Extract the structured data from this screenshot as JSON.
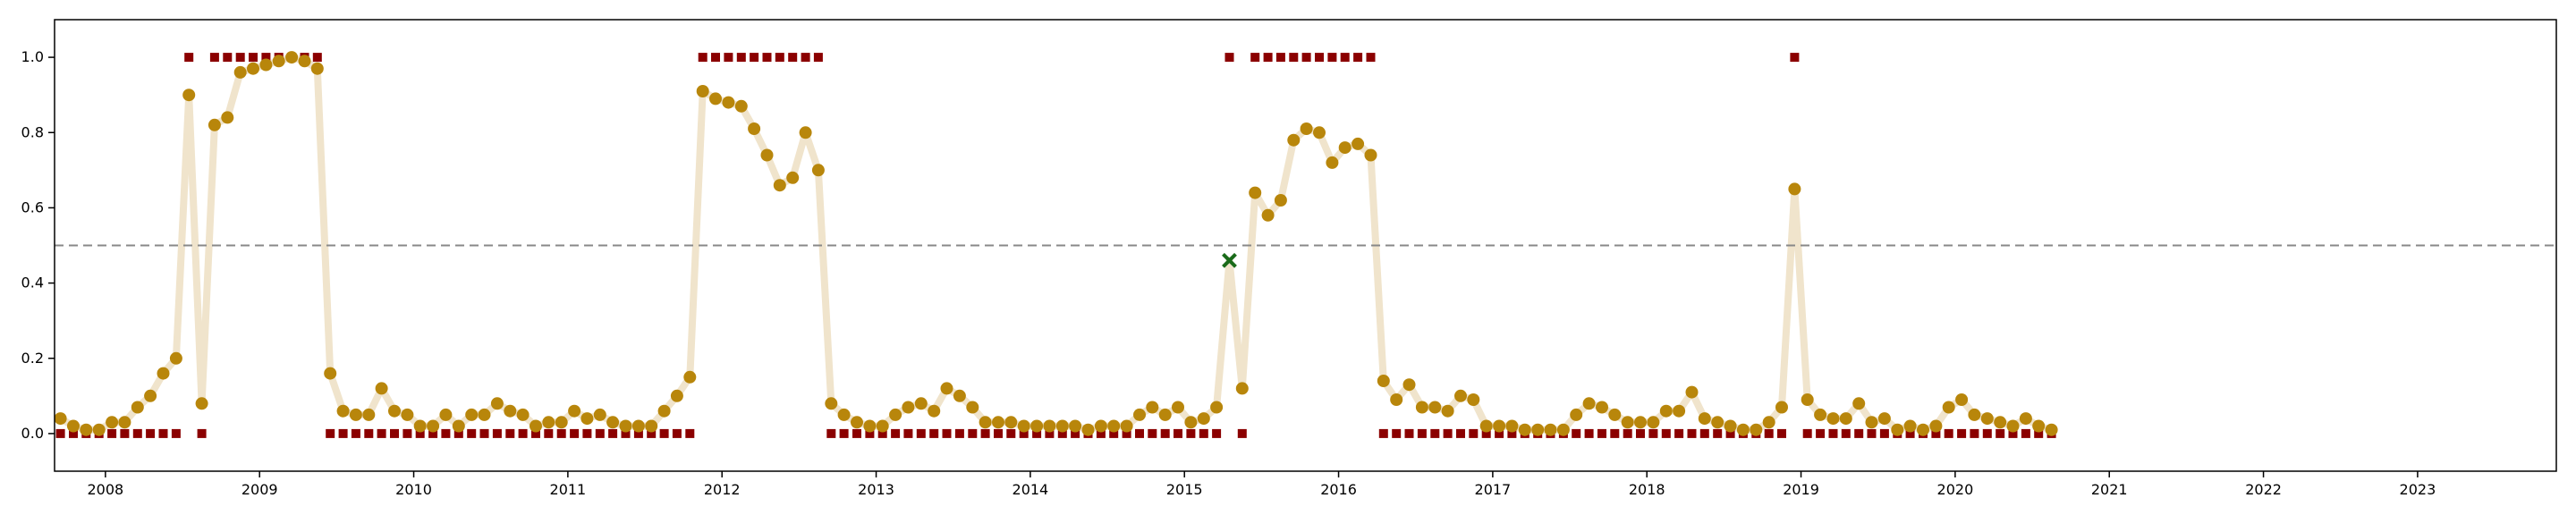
{
  "chart_data": {
    "type": "line",
    "title": "",
    "xlabel": "",
    "ylabel": "",
    "xlim": [
      2007.67,
      2023.9
    ],
    "ylim": [
      -0.1,
      1.1
    ],
    "x_ticks": [
      2008,
      2009,
      2010,
      2011,
      2012,
      2013,
      2014,
      2015,
      2016,
      2017,
      2018,
      2019,
      2020,
      2021,
      2022,
      2023
    ],
    "x_tick_labels": [
      "2008",
      "2009",
      "2010",
      "2011",
      "2012",
      "2013",
      "2014",
      "2015",
      "2016",
      "2017",
      "2018",
      "2019",
      "2020",
      "2021",
      "2022",
      "2023"
    ],
    "y_ticks": [
      0.0,
      0.2,
      0.4,
      0.6,
      0.8,
      1.0
    ],
    "y_tick_labels": [
      "0.0",
      "0.2",
      "0.4",
      "0.6",
      "0.8",
      "1.0"
    ],
    "threshold": 0.5,
    "grid": false,
    "colors": {
      "line": "#f0e4cc",
      "points": "#b8860b",
      "labels": "#8b0000",
      "threshold": "#888888",
      "marker_x": "#1a6b1a"
    },
    "series": [
      {
        "x": [
          "2007-09",
          "2007-10",
          "2007-11",
          "2007-12",
          "2008-01",
          "2008-02",
          "2008-03",
          "2008-04",
          "2008-05",
          "2008-06",
          "2008-07",
          "2008-08",
          "2008-09",
          "2008-10",
          "2008-11",
          "2008-12",
          "2009-01",
          "2009-02",
          "2009-03",
          "2009-04",
          "2009-05",
          "2009-06",
          "2009-07",
          "2009-08",
          "2009-09",
          "2009-10",
          "2009-11",
          "2009-12",
          "2010-01",
          "2010-02",
          "2010-03",
          "2010-04",
          "2010-05",
          "2010-06",
          "2010-07",
          "2010-08",
          "2010-09",
          "2010-10",
          "2010-11",
          "2010-12",
          "2011-01",
          "2011-02",
          "2011-03",
          "2011-04",
          "2011-05",
          "2011-06",
          "2011-07",
          "2011-08",
          "2011-09",
          "2011-10",
          "2011-11",
          "2011-12",
          "2012-01",
          "2012-02",
          "2012-03",
          "2012-04",
          "2012-05",
          "2012-06",
          "2012-07",
          "2012-08",
          "2012-09",
          "2012-10",
          "2012-11",
          "2012-12",
          "2013-01",
          "2013-02",
          "2013-03",
          "2013-04",
          "2013-05",
          "2013-06",
          "2013-07",
          "2013-08",
          "2013-09",
          "2013-10",
          "2013-11",
          "2013-12",
          "2014-01",
          "2014-02",
          "2014-03",
          "2014-04",
          "2014-05",
          "2014-06",
          "2014-07",
          "2014-08",
          "2014-09",
          "2014-10",
          "2014-11",
          "2014-12",
          "2015-01",
          "2015-02",
          "2015-03",
          "2015-04",
          "2015-05",
          "2015-06",
          "2015-07",
          "2015-08",
          "2015-09",
          "2015-10",
          "2015-11",
          "2015-12",
          "2016-01",
          "2016-02",
          "2016-03",
          "2016-04",
          "2016-05",
          "2016-06",
          "2016-07",
          "2016-08",
          "2016-09",
          "2016-10",
          "2016-11",
          "2016-12",
          "2017-01",
          "2017-02",
          "2017-03",
          "2017-04",
          "2017-05",
          "2017-06",
          "2017-07",
          "2017-08",
          "2017-09",
          "2017-10",
          "2017-11",
          "2017-12",
          "2018-01",
          "2018-02",
          "2018-03",
          "2018-04",
          "2018-05",
          "2018-06",
          "2018-07",
          "2018-08",
          "2018-09",
          "2018-10",
          "2018-11",
          "2018-12",
          "2019-01",
          "2019-02",
          "2019-03",
          "2019-04",
          "2019-05",
          "2019-06",
          "2019-07",
          "2019-08",
          "2019-09",
          "2019-10",
          "2019-11",
          "2019-12",
          "2020-01",
          "2020-02",
          "2020-03",
          "2020-04",
          "2020-05",
          "2020-06",
          "2020-07",
          "2020-08"
        ],
        "values": [
          0.04,
          0.02,
          0.01,
          0.01,
          0.03,
          0.03,
          0.07,
          0.1,
          0.16,
          0.2,
          0.9,
          0.08,
          0.82,
          0.84,
          0.96,
          0.97,
          0.98,
          0.99,
          1.0,
          0.99,
          0.97,
          0.16,
          0.06,
          0.05,
          0.05,
          0.12,
          0.06,
          0.05,
          0.02,
          0.02,
          0.05,
          0.02,
          0.05,
          0.05,
          0.08,
          0.06,
          0.05,
          0.02,
          0.03,
          0.03,
          0.06,
          0.04,
          0.05,
          0.03,
          0.02,
          0.02,
          0.02,
          0.06,
          0.1,
          0.15,
          0.91,
          0.89,
          0.88,
          0.87,
          0.81,
          0.74,
          0.66,
          0.68,
          0.8,
          0.7,
          0.08,
          0.05,
          0.03,
          0.02,
          0.02,
          0.05,
          0.07,
          0.08,
          0.06,
          0.12,
          0.1,
          0.07,
          0.03,
          0.03,
          0.03,
          0.02,
          0.02,
          0.02,
          0.02,
          0.02,
          0.01,
          0.02,
          0.02,
          0.02,
          0.05,
          0.07,
          0.05,
          0.07,
          0.03,
          0.04,
          0.07,
          0.46,
          0.12,
          0.64,
          0.58,
          0.62,
          0.78,
          0.81,
          0.8,
          0.72,
          0.76,
          0.77,
          0.74,
          0.14,
          0.09,
          0.13,
          0.07,
          0.07,
          0.06,
          0.1,
          0.09,
          0.02,
          0.02,
          0.02,
          0.01,
          0.01,
          0.01,
          0.01,
          0.05,
          0.08,
          0.07,
          0.05,
          0.03,
          0.03,
          0.03,
          0.06,
          0.06,
          0.11,
          0.04,
          0.03,
          0.02,
          0.01,
          0.01,
          0.03,
          0.07,
          0.65,
          0.09,
          0.05,
          0.04,
          0.04,
          0.08,
          0.03,
          0.04,
          0.01,
          0.02,
          0.01,
          0.02,
          0.07,
          0.09,
          0.05,
          0.04,
          0.03,
          0.02,
          0.04,
          0.02,
          0.01
        ],
        "labels": [
          0,
          0,
          0,
          0,
          0,
          0,
          0,
          0,
          0,
          0,
          1,
          0,
          1,
          1,
          1,
          1,
          1,
          1,
          1,
          1,
          1,
          0,
          0,
          0,
          0,
          0,
          0,
          0,
          0,
          0,
          0,
          0,
          0,
          0,
          0,
          0,
          0,
          0,
          0,
          0,
          0,
          0,
          0,
          0,
          0,
          0,
          0,
          0,
          0,
          0,
          1,
          1,
          1,
          1,
          1,
          1,
          1,
          1,
          1,
          1,
          0,
          0,
          0,
          0,
          0,
          0,
          0,
          0,
          0,
          0,
          0,
          0,
          0,
          0,
          0,
          0,
          0,
          0,
          0,
          0,
          0,
          0,
          0,
          0,
          0,
          0,
          0,
          0,
          0,
          0,
          0,
          1,
          0,
          1,
          1,
          1,
          1,
          1,
          1,
          1,
          1,
          1,
          1,
          0,
          0,
          0,
          0,
          0,
          0,
          0,
          0,
          0,
          0,
          0,
          0,
          0,
          0,
          0,
          0,
          0,
          0,
          0,
          0,
          0,
          0,
          0,
          0,
          0,
          0,
          0,
          0,
          0,
          0,
          0,
          0,
          1,
          0,
          0,
          0,
          0,
          0,
          0,
          0,
          0,
          0,
          0,
          0,
          0,
          0,
          0,
          0,
          0,
          0,
          0,
          0,
          0
        ],
        "misclassified_index": 91
      }
    ]
  }
}
